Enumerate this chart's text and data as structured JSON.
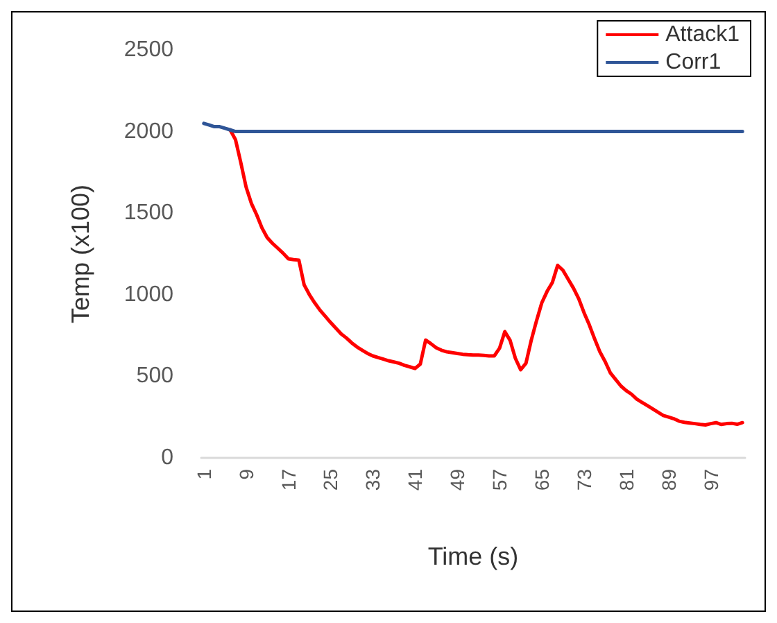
{
  "chart_data": {
    "type": "line",
    "xlabel": "Time (s)",
    "ylabel": "Temp (x100)",
    "categories": [
      "1",
      null,
      null,
      null,
      null,
      null,
      null,
      null,
      "9",
      null,
      null,
      null,
      null,
      null,
      null,
      null,
      "17",
      null,
      null,
      null,
      null,
      null,
      null,
      null,
      "25",
      null,
      null,
      null,
      null,
      null,
      null,
      null,
      "33",
      null,
      null,
      null,
      null,
      null,
      null,
      null,
      "41",
      null,
      null,
      null,
      null,
      null,
      null,
      null,
      "49",
      null,
      null,
      null,
      null,
      null,
      null,
      null,
      "57",
      null,
      null,
      null,
      null,
      null,
      null,
      null,
      "65",
      null,
      null,
      null,
      null,
      null,
      null,
      null,
      "73",
      null,
      null,
      null,
      null,
      null,
      null,
      null,
      "81",
      null,
      null,
      null,
      null,
      null,
      null,
      null,
      "89",
      null,
      null,
      null,
      null,
      null,
      null,
      null,
      "97",
      null,
      null,
      null,
      null,
      null,
      null
    ],
    "series": [
      {
        "name": "Attack1",
        "color": "#ff0000",
        "values": [
          null,
          null,
          null,
          null,
          null,
          2010,
          1950,
          1810,
          1660,
          1560,
          1490,
          1410,
          1350,
          1315,
          1285,
          1255,
          1220,
          1215,
          1212,
          1060,
          1000,
          950,
          905,
          868,
          830,
          795,
          760,
          735,
          705,
          680,
          660,
          640,
          625,
          615,
          605,
          595,
          588,
          580,
          567,
          558,
          548,
          575,
          722,
          700,
          675,
          660,
          650,
          645,
          640,
          635,
          632,
          630,
          630,
          628,
          625,
          625,
          672,
          774,
          720,
          610,
          540,
          580,
          720,
          840,
          950,
          1020,
          1075,
          1180,
          1150,
          1095,
          1040,
          975,
          890,
          815,
          730,
          650,
          590,
          520,
          480,
          440,
          412,
          390,
          360,
          340,
          320,
          300,
          280,
          260,
          250,
          240,
          225,
          218,
          214,
          210,
          205,
          202,
          210,
          216,
          205,
          210,
          212,
          206,
          216
        ]
      },
      {
        "name": "Corr1",
        "color": "#2f5597",
        "values": [
          2050,
          2040,
          2030,
          2030,
          2020,
          2010,
          2000,
          2000,
          2000,
          2000,
          2000,
          2000,
          2000,
          2000,
          2000,
          2000,
          2000,
          2000,
          2000,
          2000,
          2000,
          2000,
          2000,
          2000,
          2000,
          2000,
          2000,
          2000,
          2000,
          2000,
          2000,
          2000,
          2000,
          2000,
          2000,
          2000,
          2000,
          2000,
          2000,
          2000,
          2000,
          2000,
          2000,
          2000,
          2000,
          2000,
          2000,
          2000,
          2000,
          2000,
          2000,
          2000,
          2000,
          2000,
          2000,
          2000,
          2000,
          2000,
          2000,
          2000,
          2000,
          2000,
          2000,
          2000,
          2000,
          2000,
          2000,
          2000,
          2000,
          2000,
          2000,
          2000,
          2000,
          2000,
          2000,
          2000,
          2000,
          2000,
          2000,
          2000,
          2000,
          2000,
          2000,
          2000,
          2000,
          2000,
          2000,
          2000,
          2000,
          2000,
          2000,
          2000,
          2000,
          2000,
          2000,
          2000,
          2000,
          2000,
          2000,
          2000,
          2000,
          2000,
          2000
        ]
      }
    ],
    "ylim": [
      0,
      2500
    ],
    "yticks": [
      0,
      500,
      1000,
      1500,
      2000,
      2500
    ],
    "grid": false,
    "legend": "top right",
    "marker": "none",
    "line_style": "solid"
  }
}
